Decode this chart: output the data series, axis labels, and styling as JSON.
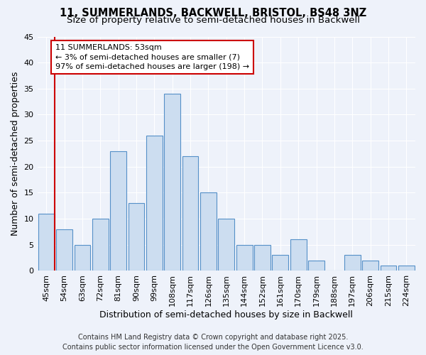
{
  "title_line1": "11, SUMMERLANDS, BACKWELL, BRISTOL, BS48 3NZ",
  "title_line2": "Size of property relative to semi-detached houses in Backwell",
  "xlabel": "Distribution of semi-detached houses by size in Backwell",
  "ylabel": "Number of semi-detached properties",
  "categories": [
    "45sqm",
    "54sqm",
    "63sqm",
    "72sqm",
    "81sqm",
    "90sqm",
    "99sqm",
    "108sqm",
    "117sqm",
    "126sqm",
    "135sqm",
    "144sqm",
    "152sqm",
    "161sqm",
    "170sqm",
    "179sqm",
    "188sqm",
    "197sqm",
    "206sqm",
    "215sqm",
    "224sqm"
  ],
  "values": [
    11,
    8,
    5,
    10,
    23,
    13,
    26,
    34,
    22,
    15,
    10,
    5,
    5,
    3,
    6,
    2,
    0,
    3,
    2,
    1,
    1
  ],
  "bar_color": "#ccddf0",
  "bar_edge_color": "#5590c8",
  "highlight_color": "#cc0000",
  "annotation_text": "11 SUMMERLANDS: 53sqm\n← 3% of semi-detached houses are smaller (7)\n97% of semi-detached houses are larger (198) →",
  "annotation_box_color": "#ffffff",
  "annotation_box_edge_color": "#cc0000",
  "ylim": [
    0,
    45
  ],
  "yticks": [
    0,
    5,
    10,
    15,
    20,
    25,
    30,
    35,
    40,
    45
  ],
  "footer_line1": "Contains HM Land Registry data © Crown copyright and database right 2025.",
  "footer_line2": "Contains public sector information licensed under the Open Government Licence v3.0.",
  "bg_color": "#eef2fa",
  "grid_color": "#ffffff",
  "title_fontsize": 10.5,
  "subtitle_fontsize": 9.5,
  "axis_label_fontsize": 9,
  "tick_fontsize": 8,
  "annotation_fontsize": 8,
  "footer_fontsize": 7
}
